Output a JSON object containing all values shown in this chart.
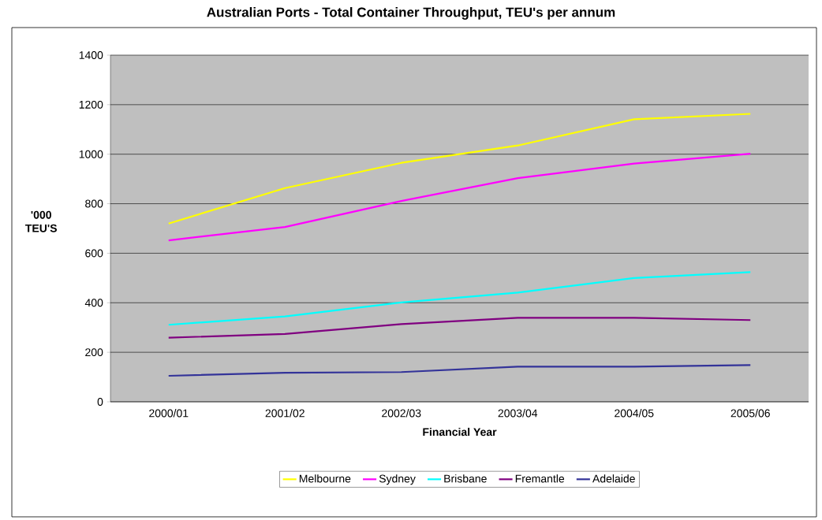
{
  "chart_data": {
    "type": "line",
    "title": "Australian Ports - Total Container Throughput, TEU's per annum",
    "xlabel": "Financial Year",
    "ylabel": "'000 TEU'S",
    "categories": [
      "2000/01",
      "2001/02",
      "2002/03",
      "2003/04",
      "2004/05",
      "2005/06"
    ],
    "series": [
      {
        "name": "Melbourne",
        "color": "#ffff00",
        "values": [
          720,
          863,
          965,
          1035,
          1141,
          1163
        ]
      },
      {
        "name": "Sydney",
        "color": "#ff00ff",
        "values": [
          652,
          706,
          811,
          903,
          962,
          1002
        ]
      },
      {
        "name": "Brisbane",
        "color": "#00ffff",
        "values": [
          311,
          345,
          401,
          441,
          500,
          524
        ]
      },
      {
        "name": "Fremantle",
        "color": "#800080",
        "values": [
          259,
          274,
          314,
          339,
          339,
          330
        ]
      },
      {
        "name": "Adelaide",
        "color": "#333399",
        "values": [
          105,
          117,
          120,
          142,
          142,
          148
        ]
      }
    ],
    "ylim": [
      0,
      1400
    ],
    "yticks": [
      0,
      200,
      400,
      600,
      800,
      1000,
      1200,
      1400
    ],
    "grid": "y",
    "legend": "bottom"
  }
}
